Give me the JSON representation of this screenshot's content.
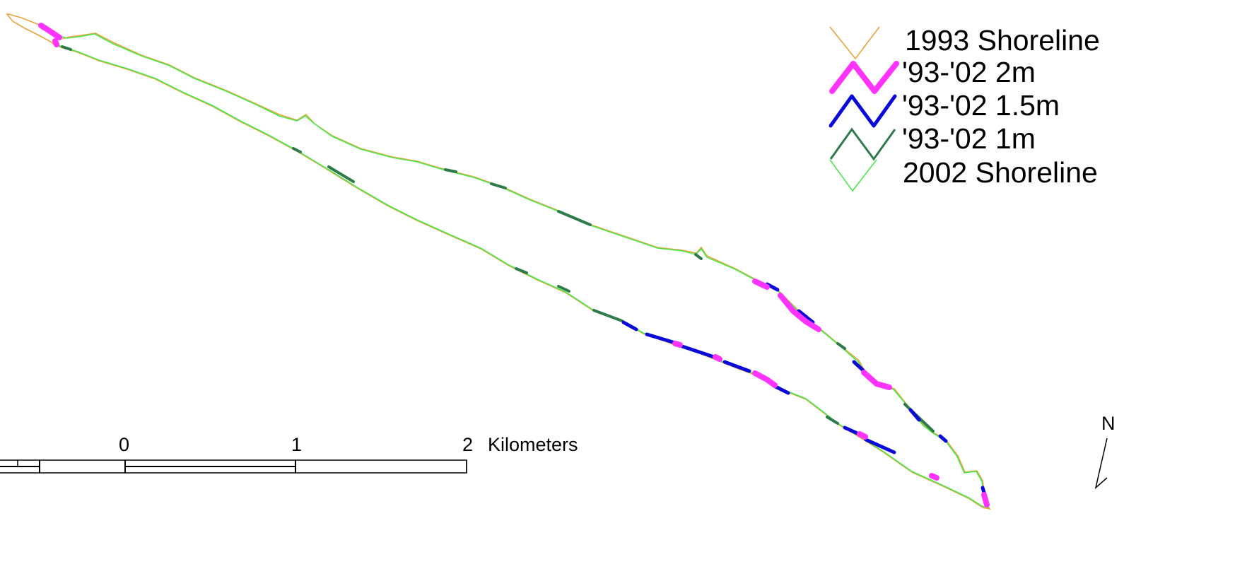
{
  "legend": {
    "items": [
      {
        "label": "1993 Shoreline",
        "color": "#e8a33a",
        "style": "thin",
        "icon": "zigzag-line-icon"
      },
      {
        "label": "'93-'02 2m",
        "color": "#ff33ff",
        "style": "thick",
        "icon": "zigzag-line-icon"
      },
      {
        "label": "'93-'02 1.5m",
        "color": "#0a0ad8",
        "style": "medium",
        "icon": "zigzag-line-icon"
      },
      {
        "label": "'93-'02 1m",
        "color": "#2f7a4a",
        "style": "medium",
        "icon": "zigzag-line-icon"
      },
      {
        "label": "2002 Shoreline",
        "color": "#4de84d",
        "style": "thin",
        "icon": "zigzag-line-icon"
      }
    ]
  },
  "scale_bar": {
    "ticks": [
      "0",
      "1",
      "2"
    ],
    "unit": "Kilometers"
  },
  "north_arrow": {
    "label": "N",
    "icon": "north-arrow-icon"
  },
  "colors": {
    "shoreline_1993": "#e8a33a",
    "shoreline_2002": "#4de84d",
    "change_2m": "#ff33ff",
    "change_1_5m": "#0a0ad8",
    "change_1m": "#2f7a4a"
  }
}
